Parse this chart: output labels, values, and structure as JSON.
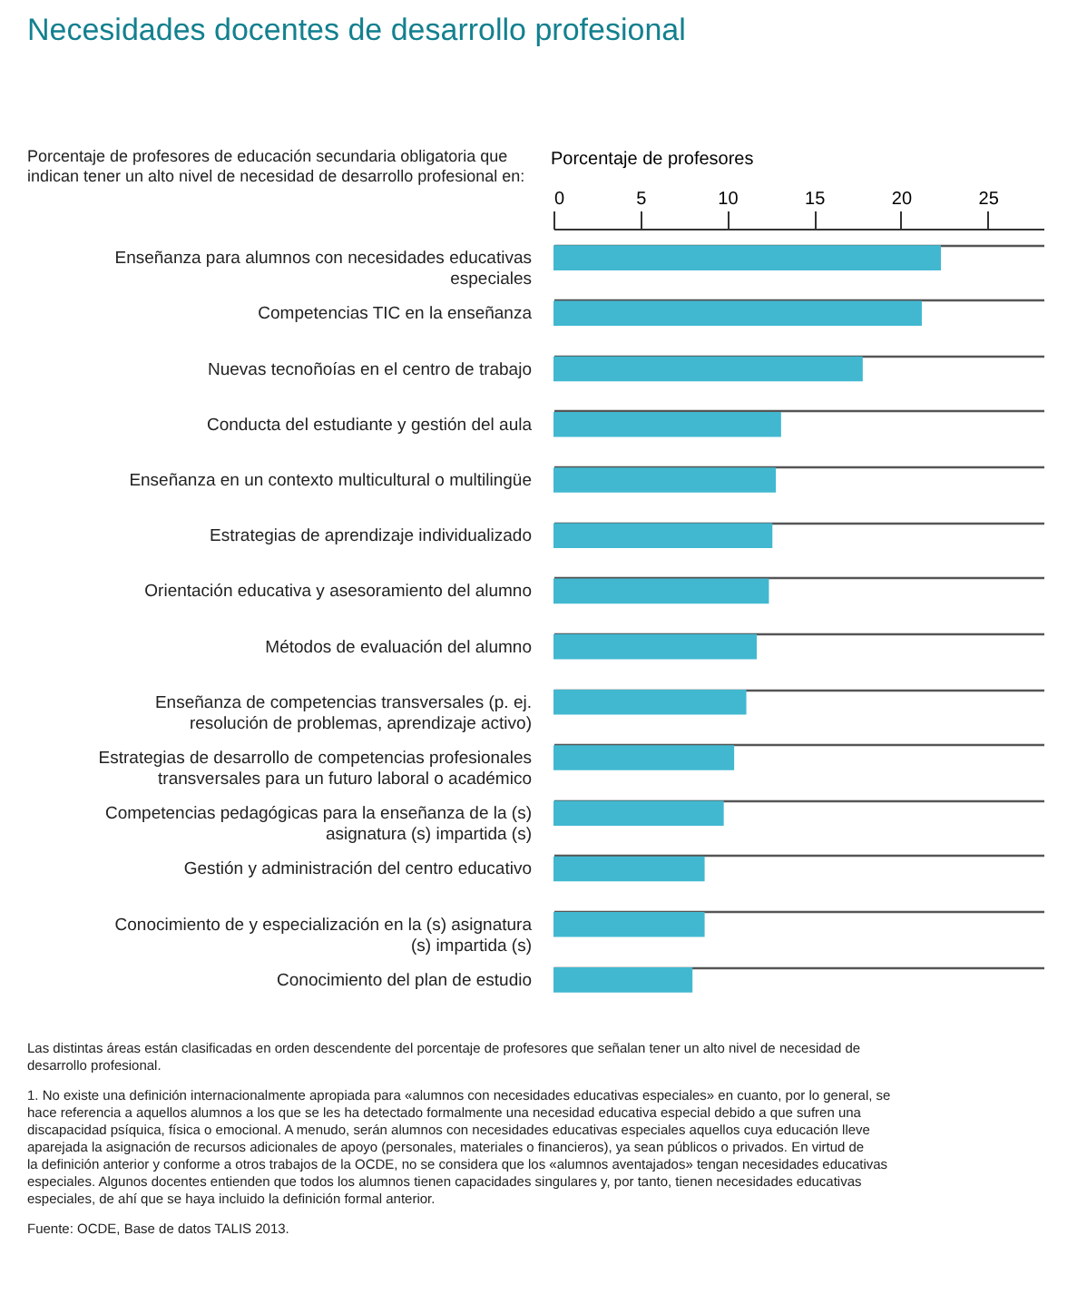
{
  "chart_data": {
    "type": "bar",
    "orientation": "horizontal",
    "title": "Necesidades docentes de desarrollo profesional",
    "xlabel": "Porcentaje de profesores",
    "ylabel": "Porcentaje de profesores de educación secundaria obligatoria que indican tener un alto nivel de necesidad de desarrollo profesional en:",
    "categories": [
      "Enseñanza para alumnos con necesidades educativas especiales",
      "Competencias TIC en la enseñanza",
      "Nuevas tecnoñoías en el centro de trabajo",
      "Conducta del estudiante y gestión del aula",
      "Enseñanza en un contexto multicultural o multilingüe",
      "Estrategias de aprendizaje individualizado",
      "Orientación educativa y asesoramiento del alumno",
      "Métodos de evaluación del alumno",
      "Enseñanza de competencias transversales (p. ej. resolución de problemas, aprendizaje activo)",
      "Estrategias de desarrollo de competencias profesionales transversales para un futuro laboral o académico",
      "Competencias pedagógicas para la enseñanza de la (s) asignatura (s) impartida (s)",
      "Gestión y administración del centro educativo",
      "Conocimiento de y especialización en la (s) asignatura (s) impartida (s)",
      "Conocimiento del plan de estudio"
    ],
    "values": [
      22.3,
      21.2,
      17.8,
      13.1,
      12.8,
      12.6,
      12.4,
      11.7,
      11.1,
      10.4,
      9.8,
      8.7,
      8.7,
      8.0
    ],
    "color": "#41b8d0",
    "xlim": [
      0,
      28.2
    ],
    "xticks": [
      0,
      5,
      10,
      15,
      20,
      25
    ],
    "grid": "y",
    "annotations": [
      "Las distintas áreas están clasificadas en orden descendente del porcentaje de profesores que señalan tener un alto nivel de necesidad de desarrollo profesional.",
      "1. No existe una definición internacionalmente apropiada para «alumnos con necesidades educativas especiales» en cuanto, por lo general, se hace referencia a aquellos alumnos a los que se les ha detectado formalmente una necesidad educativa especial debido a que sufren una discapacidad psíquica, física o emocional. A menudo, serán alumnos con necesidades educativas especiales aquellos cuya educación lleve aparejada la asignación de recursos adicionales de apoyo (personales, materiales o financieros), ya sean públicos o privados. En virtud de la definición anterior y conforme a otros trabajos de la OCDE, no se considera que los «alumnos aventajados» tengan necesidades educativas especiales. Algunos docentes entienden que todos los alumnos tienen capacidades singulares y, por tanto, tienen necesidades educativas especiales, de ahí que se haya incluido la definición formal anterior.",
      "Fuente: OCDE, Base de datos TALIS 2013."
    ]
  }
}
